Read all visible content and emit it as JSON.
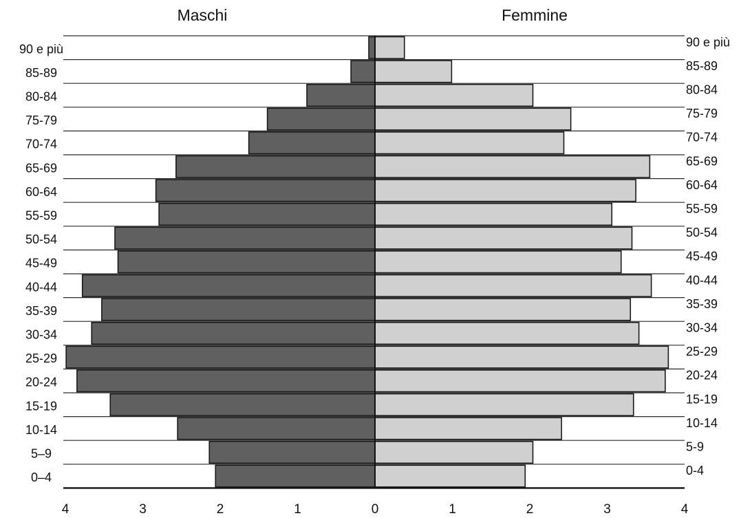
{
  "chart_data": {
    "type": "bar",
    "orientation": "horizontal",
    "layout": "population-pyramid",
    "categories": [
      "90 e più",
      "85-89",
      "80-84",
      "75-79",
      "70-74",
      "65-69",
      "60-64",
      "55-59",
      "50-54",
      "45-49",
      "40-44",
      "35-39",
      "30-34",
      "25-29",
      "20-24",
      "15-19",
      "10-14",
      "5-9",
      "0-4"
    ],
    "left_categories": [
      "90 e più",
      "85-89",
      "80-84",
      "75-79",
      "70-74",
      "65-69",
      "60-64",
      "55-59",
      "50-54",
      "45-49",
      "40-44",
      "35-39",
      "30-34",
      "25-29",
      "20-24",
      "15-19",
      "10-14",
      "5–9",
      "0–4"
    ],
    "series": [
      {
        "name": "Maschi",
        "color": "#606060",
        "values": [
          0.08,
          0.31,
          0.88,
          1.39,
          1.63,
          2.57,
          2.83,
          2.79,
          3.36,
          3.32,
          3.78,
          3.53,
          3.66,
          3.99,
          3.85,
          3.42,
          2.55,
          2.14,
          2.06
        ]
      },
      {
        "name": "Femmine",
        "color": "#d0d0d0",
        "values": [
          0.38,
          0.99,
          2.04,
          2.53,
          2.44,
          3.55,
          3.37,
          3.06,
          3.32,
          3.18,
          3.57,
          3.3,
          3.41,
          3.79,
          3.75,
          3.34,
          2.41,
          2.04,
          1.94
        ]
      }
    ],
    "ticks": [
      "4",
      "3",
      "2",
      "1",
      "0",
      "1",
      "2",
      "3",
      "4"
    ],
    "xlim": [
      -4,
      4
    ],
    "grid": true
  }
}
